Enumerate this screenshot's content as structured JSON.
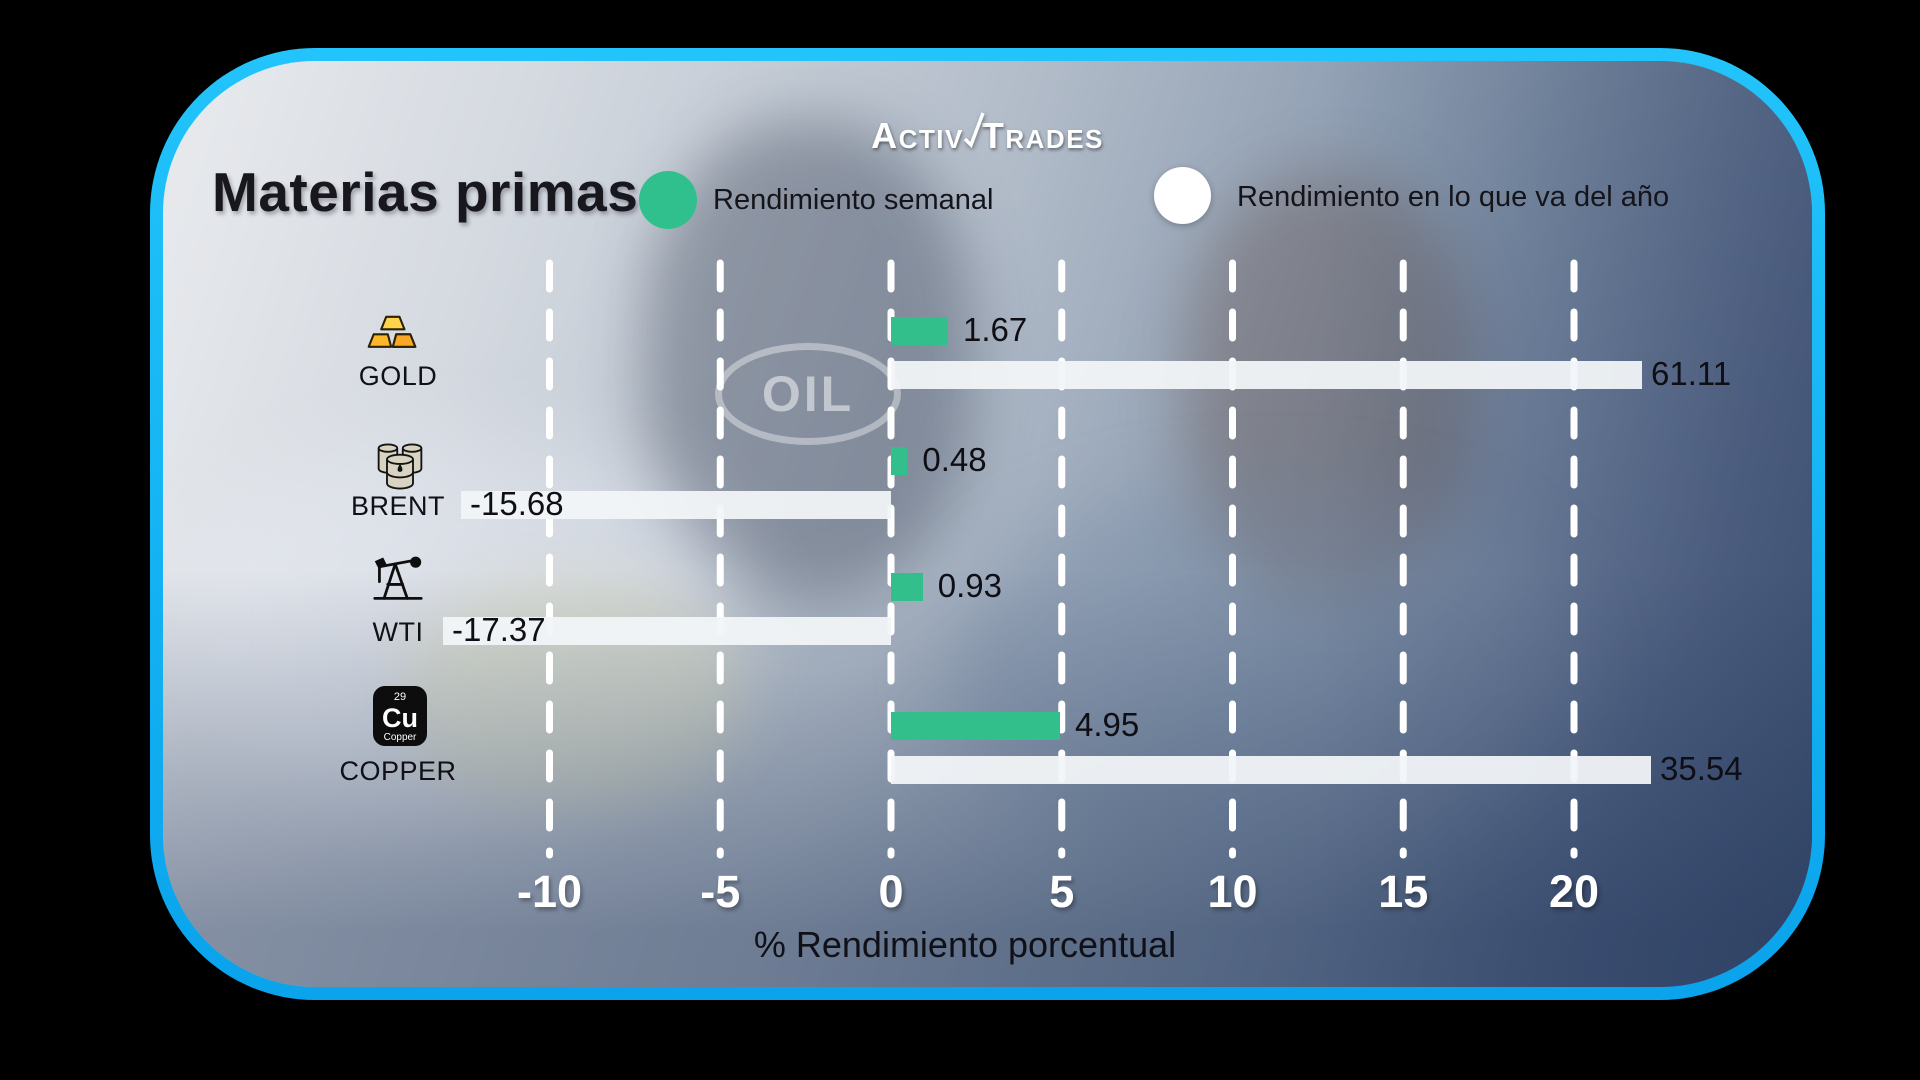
{
  "brand": {
    "name": "ActivTrades",
    "word1": "Activ",
    "word2": "Trades"
  },
  "header": {
    "title": "Materias primas"
  },
  "legend": {
    "weekly": {
      "label": "Rendimiento semanal",
      "color": "#2fc08d"
    },
    "ytd": {
      "label": "Rendimiento en lo que va del año",
      "color": "#ffffff"
    }
  },
  "background": {
    "oil_emblem": "OIL"
  },
  "copper_badge": {
    "number": "29",
    "symbol": "Cu",
    "name": "Copper"
  },
  "colors": {
    "weekly_bar": "#32bf8c",
    "ytd_bar": "#f2f5f8",
    "card_border": "#14b2f2",
    "axis_text": "#ffffff",
    "label_text": "#0e0e14"
  },
  "chart_data": {
    "type": "bar",
    "orientation": "horizontal",
    "title": "Materias primas",
    "xlabel": "% Rendimiento porcentual",
    "categories": [
      "GOLD",
      "BRENT",
      "WTI",
      "COPPER"
    ],
    "series": [
      {
        "name": "Rendimiento semanal",
        "color": "#32bf8c",
        "values": [
          1.67,
          0.48,
          0.93,
          4.95
        ]
      },
      {
        "name": "Rendimiento en lo que va del año",
        "color": "#f2f5f8",
        "values": [
          61.11,
          -15.68,
          -17.37,
          35.54
        ]
      }
    ],
    "xticks": [
      -10,
      -5,
      0,
      5,
      10,
      15,
      20
    ],
    "xlim": [
      -12.6,
      22
    ],
    "grid": "dashed-vertical-white",
    "bars_clipped_to_plot_edges": true,
    "legend_position": "top"
  }
}
